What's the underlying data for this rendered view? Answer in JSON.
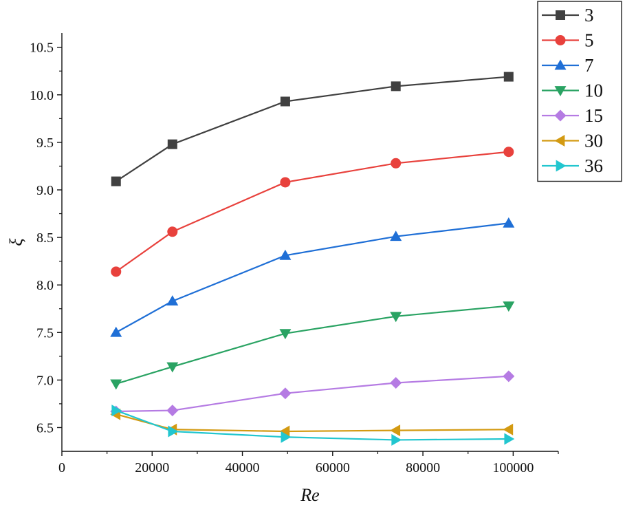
{
  "chart_data": {
    "type": "line",
    "title": "",
    "xlabel": "Re",
    "ylabel": "ξ",
    "xlim": [
      0,
      110000
    ],
    "ylim": [
      6.25,
      10.65
    ],
    "xticks": [
      0,
      20000,
      40000,
      60000,
      80000,
      100000
    ],
    "yticks": [
      6.5,
      7.0,
      7.5,
      8.0,
      8.5,
      9.0,
      9.5,
      10.0,
      10.5
    ],
    "ytick_labels": [
      "6.5",
      "7.0",
      "7.5",
      "8.0",
      "8.5",
      "9.0",
      "9.5",
      "10.0",
      "10.5"
    ],
    "grid": false,
    "legend_position": "top-right",
    "x": [
      12000,
      24500,
      49500,
      74000,
      99000
    ],
    "series": [
      {
        "name": "3",
        "color": "#404040",
        "marker": "square",
        "values": [
          9.09,
          9.48,
          9.93,
          10.09,
          10.19
        ]
      },
      {
        "name": "5",
        "color": "#e8413c",
        "marker": "circle",
        "values": [
          8.14,
          8.56,
          9.08,
          9.28,
          9.4
        ]
      },
      {
        "name": "7",
        "color": "#1f6fd6",
        "marker": "triangle-up",
        "values": [
          7.5,
          7.83,
          8.31,
          8.51,
          8.65
        ]
      },
      {
        "name": "10",
        "color": "#2aa363",
        "marker": "triangle-down",
        "values": [
          6.96,
          7.14,
          7.49,
          7.67,
          7.78
        ]
      },
      {
        "name": "15",
        "color": "#b57be3",
        "marker": "diamond",
        "values": [
          6.67,
          6.68,
          6.86,
          6.97,
          7.04
        ]
      },
      {
        "name": "30",
        "color": "#d39a12",
        "marker": "triangle-left",
        "values": [
          6.64,
          6.48,
          6.46,
          6.47,
          6.48
        ]
      },
      {
        "name": "36",
        "color": "#22c6cf",
        "marker": "triangle-right",
        "values": [
          6.68,
          6.46,
          6.4,
          6.37,
          6.38
        ]
      }
    ]
  }
}
